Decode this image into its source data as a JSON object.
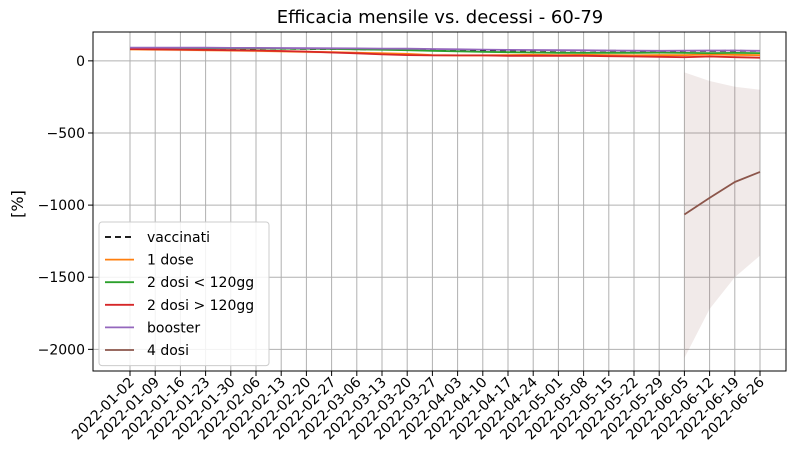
{
  "chart_data": {
    "type": "line",
    "title": "Efficacia mensile vs. decessi - 60-79",
    "xlabel": "",
    "ylabel": "[%]",
    "ylim": [
      -2150,
      200
    ],
    "yticks": [
      0,
      -500,
      -1000,
      -1500,
      -2000
    ],
    "ytick_labels": [
      "0",
      "−500",
      "−1000",
      "−1500",
      "−2000"
    ],
    "grid": true,
    "legend_position": "lower-left",
    "categories": [
      "2022-01-02",
      "2022-01-09",
      "2022-01-16",
      "2022-01-23",
      "2022-01-30",
      "2022-02-06",
      "2022-02-13",
      "2022-02-20",
      "2022-02-27",
      "2022-03-06",
      "2022-03-13",
      "2022-03-20",
      "2022-03-27",
      "2022-04-03",
      "2022-04-10",
      "2022-04-17",
      "2022-04-24",
      "2022-05-01",
      "2022-05-08",
      "2022-05-15",
      "2022-05-22",
      "2022-05-29",
      "2022-06-05",
      "2022-06-12",
      "2022-06-19",
      "2022-06-26"
    ],
    "series": [
      {
        "name": "vaccinati",
        "color": "#000000",
        "dash": "6,4",
        "values": [
          88,
          87,
          87,
          86,
          86,
          85,
          84,
          83,
          82,
          81,
          79,
          78,
          76,
          74,
          73,
          72,
          72,
          71,
          71,
          70,
          69,
          68,
          69,
          69,
          70,
          69
        ]
      },
      {
        "name": "1 dose",
        "color": "#ff7f0e",
        "dash": "",
        "values": [
          80,
          78,
          76,
          74,
          72,
          70,
          66,
          63,
          60,
          56,
          52,
          48,
          40,
          38,
          38,
          40,
          42,
          40,
          42,
          40,
          38,
          40,
          40,
          45,
          42,
          40
        ]
      },
      {
        "name": "2 dosi < 120gg",
        "color": "#2ca02c",
        "dash": "",
        "values": [
          90,
          89,
          88,
          88,
          87,
          86,
          85,
          84,
          82,
          80,
          77,
          74,
          70,
          66,
          62,
          60,
          58,
          56,
          55,
          56,
          56,
          57,
          55,
          54,
          55,
          54
        ]
      },
      {
        "name": "2 dosi > 120gg",
        "color": "#d62728",
        "dash": "",
        "values": [
          82,
          80,
          78,
          76,
          74,
          72,
          68,
          64,
          58,
          52,
          45,
          40,
          38,
          38,
          38,
          35,
          35,
          35,
          35,
          32,
          30,
          28,
          25,
          30,
          25,
          22
        ]
      },
      {
        "name": "booster",
        "color": "#9467bd",
        "dash": "",
        "values": [
          92,
          92,
          91,
          91,
          90,
          90,
          89,
          88,
          87,
          86,
          85,
          84,
          82,
          80,
          78,
          76,
          75,
          74,
          73,
          72,
          71,
          70,
          71,
          72,
          72,
          70
        ]
      },
      {
        "name": "4 dosi",
        "color": "#8c564b",
        "dash": "",
        "values": [
          null,
          null,
          null,
          null,
          null,
          null,
          null,
          null,
          null,
          null,
          null,
          null,
          null,
          null,
          null,
          null,
          null,
          null,
          null,
          null,
          null,
          null,
          -1065,
          -950,
          -840,
          -770
        ]
      }
    ],
    "bands": [
      {
        "series": "1 dose",
        "color": "#ff7f0e",
        "opacity": 0.15,
        "lower": [
          70,
          68,
          66,
          64,
          62,
          60,
          56,
          53,
          50,
          46,
          42,
          38,
          30,
          28,
          28,
          30,
          30,
          28,
          30,
          28,
          26,
          26,
          24,
          25,
          20,
          15
        ],
        "upper": [
          88,
          86,
          84,
          82,
          80,
          78,
          75,
          72,
          68,
          65,
          61,
          57,
          50,
          48,
          48,
          50,
          52,
          50,
          52,
          50,
          48,
          50,
          52,
          60,
          58,
          60
        ]
      },
      {
        "series": "4 dosi",
        "color": "#8c564b",
        "opacity": 0.12,
        "lower": [
          null,
          null,
          null,
          null,
          null,
          null,
          null,
          null,
          null,
          null,
          null,
          null,
          null,
          null,
          null,
          null,
          null,
          null,
          null,
          null,
          null,
          null,
          -2060,
          -1720,
          -1500,
          -1350
        ],
        "upper": [
          null,
          null,
          null,
          null,
          null,
          null,
          null,
          null,
          null,
          null,
          null,
          null,
          null,
          null,
          null,
          null,
          null,
          null,
          null,
          null,
          null,
          null,
          -80,
          -140,
          -180,
          -200
        ]
      }
    ]
  }
}
